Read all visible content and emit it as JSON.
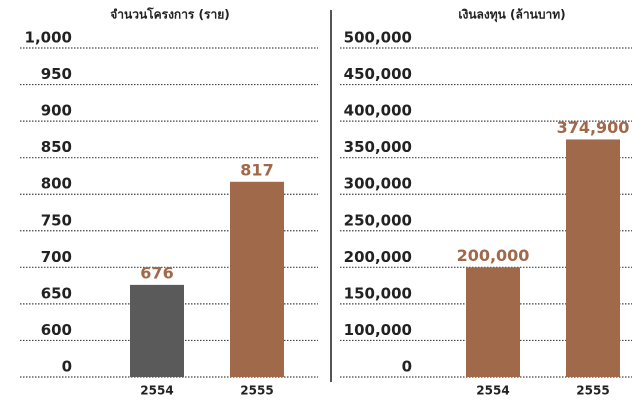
{
  "chart_data": [
    {
      "type": "bar",
      "title": "จำนวนโครงการ (ราย)",
      "categories": [
        "2554",
        "2555"
      ],
      "values": [
        676,
        817
      ],
      "colors": [
        "#5a5a5a",
        "#a0694a"
      ],
      "ylim": [
        0,
        1000
      ],
      "yticks": [
        0,
        600,
        650,
        700,
        750,
        800,
        850,
        900,
        950,
        {
          "value": 1000,
          "label": "1,000"
        }
      ],
      "grid": true
    },
    {
      "type": "bar",
      "title": "เงินลงทุน (ล้านบาท)",
      "categories": [
        "2554",
        "2555"
      ],
      "values": [
        200000,
        374900
      ],
      "value_labels": [
        "200,000",
        "374,900"
      ],
      "colors": [
        "#a0694a",
        "#a0694a"
      ],
      "ylim": [
        0,
        500000
      ],
      "yticks": [
        0,
        {
          "value": 100000,
          "label": "100,000"
        },
        {
          "value": 150000,
          "label": "150,000"
        },
        {
          "value": 200000,
          "label": "200,000"
        },
        {
          "value": 250000,
          "label": "250,000"
        },
        {
          "value": 300000,
          "label": "300,000"
        },
        {
          "value": 350000,
          "label": "350,000"
        },
        {
          "value": 400000,
          "label": "400,000"
        },
        {
          "value": 450000,
          "label": "450,000"
        },
        {
          "value": 500000,
          "label": "500,000"
        }
      ],
      "grid": true
    }
  ]
}
